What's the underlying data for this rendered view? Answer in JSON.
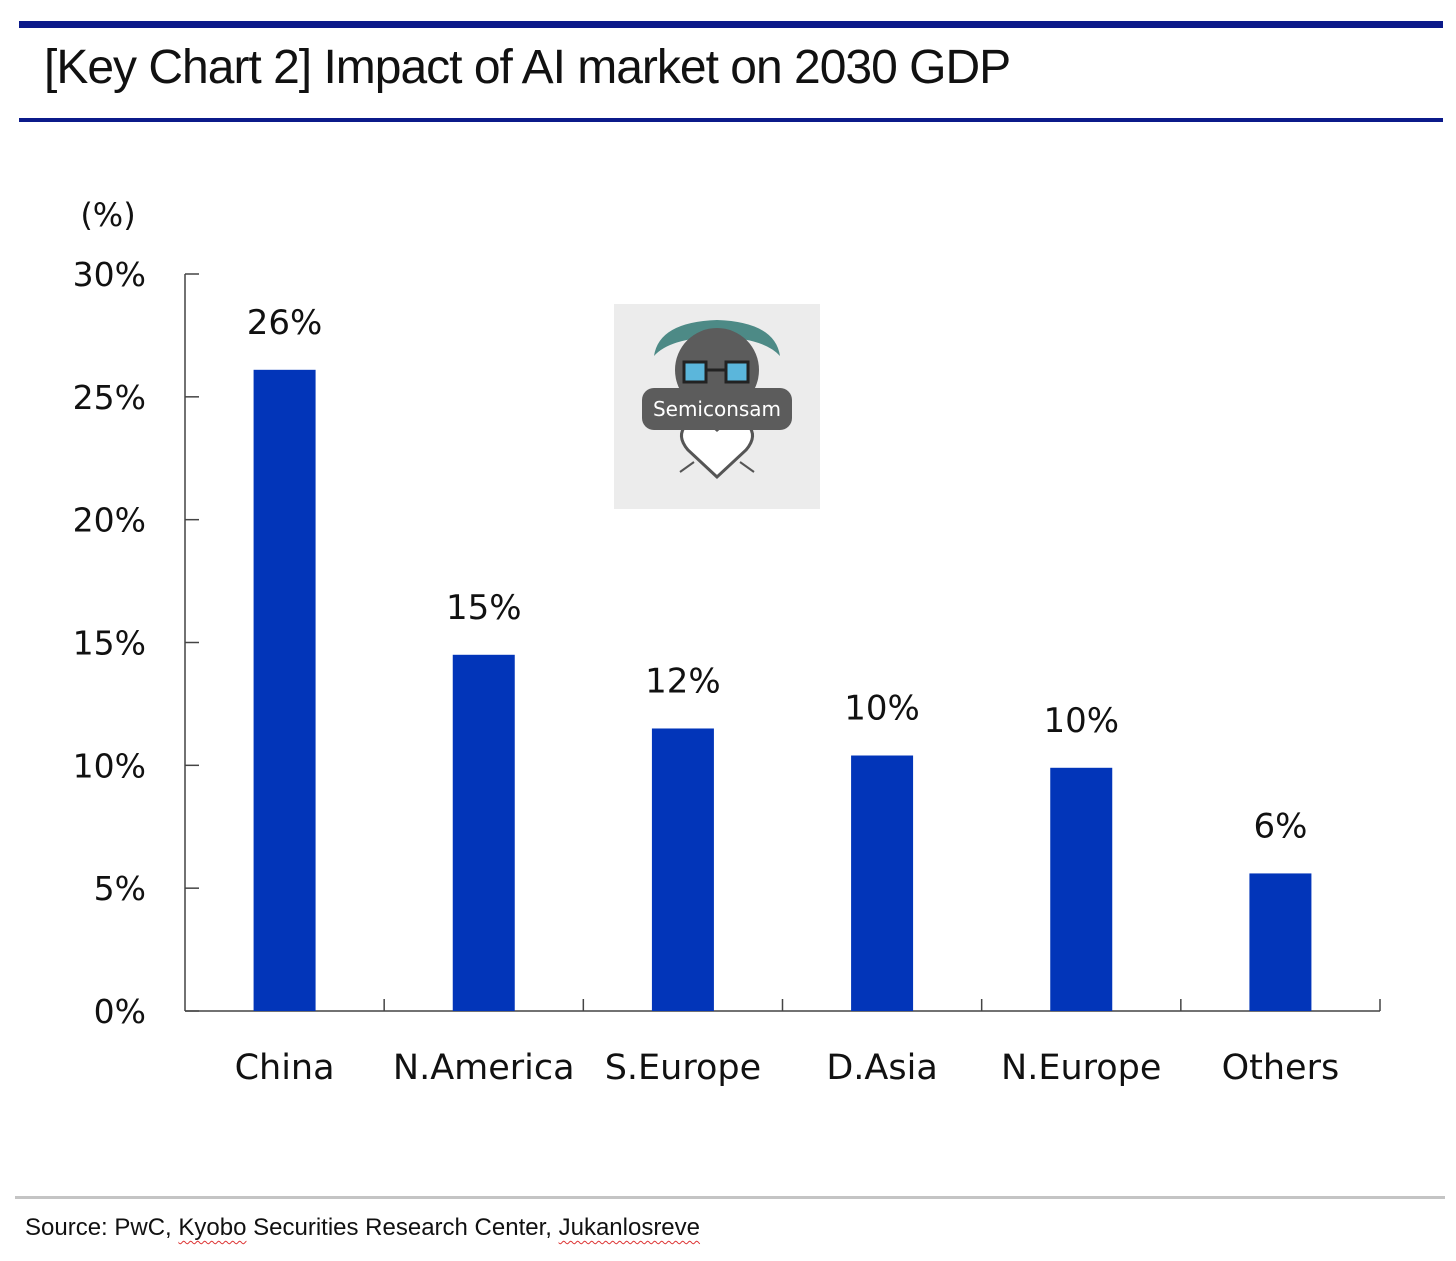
{
  "header": {
    "title": "[Key Chart 2] Impact of AI market on 2030 GDP"
  },
  "chart_data": {
    "type": "bar",
    "unit_label": "(%)",
    "categories": [
      "China",
      "N.America",
      "S.Europe",
      "D.Asia",
      "N.Europe",
      "Others"
    ],
    "values": [
      26.1,
      14.5,
      11.5,
      10.4,
      9.9,
      5.6
    ],
    "data_labels": [
      "26%",
      "15%",
      "12%",
      "10%",
      "10%",
      "6%"
    ],
    "ylim": [
      0,
      30
    ],
    "yticks": [
      0,
      5,
      10,
      15,
      20,
      25,
      30
    ],
    "ytick_labels": [
      "0%",
      "5%",
      "10%",
      "15%",
      "20%",
      "25%",
      "30%"
    ],
    "grid": false,
    "colors": {
      "bar": "#0235b9",
      "axis": "#444444"
    }
  },
  "logo": {
    "text": "Semiconsam"
  },
  "footer": {
    "source_prefix": "Source: PwC, ",
    "source_part1": "Kyobo",
    "source_part2": " Securities Research Center, ",
    "source_part3": "Jukanlosreve"
  }
}
